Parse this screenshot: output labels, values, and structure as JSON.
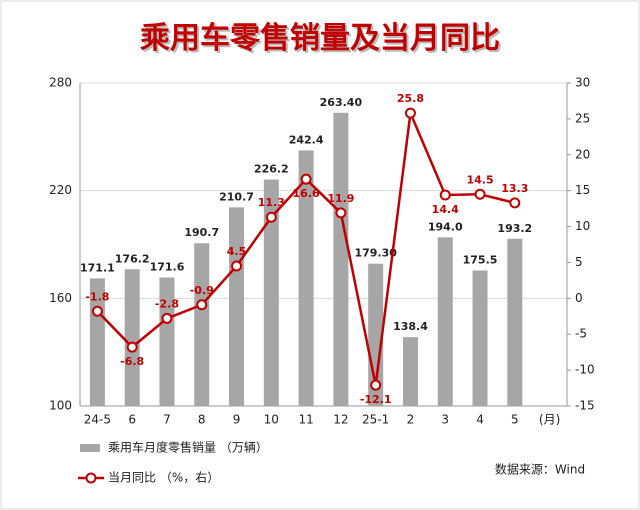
{
  "chart_data": {
    "type": "bar-line",
    "title": "乘用车零售销量及当月同比",
    "categories": [
      "24-5",
      "6",
      "7",
      "8",
      "9",
      "10",
      "11",
      "12",
      "25-1",
      "2",
      "3",
      "4",
      "5"
    ],
    "x_unit": "(月)",
    "series": [
      {
        "name": "乘用车月度零售销量 （万辆）",
        "type": "bar",
        "color": "#a6a6a6",
        "values": [
          171.1,
          176.2,
          171.6,
          190.7,
          210.7,
          226.2,
          242.4,
          263.4,
          179.3,
          138.4,
          194.0,
          175.5,
          193.2
        ],
        "value_labels": [
          "171.1",
          "176.2",
          "171.6",
          "190.7",
          "210.7",
          "226.2",
          "242.4",
          "263.40",
          "179.30",
          "138.4",
          "194.0",
          "175.5",
          "193.2"
        ]
      },
      {
        "name": "当月同比 （%，右）",
        "type": "line",
        "axis": "y2",
        "color": "#c00000",
        "values": [
          -1.8,
          -6.8,
          -2.8,
          -0.9,
          4.5,
          11.3,
          16.6,
          11.9,
          -12.1,
          25.8,
          14.4,
          14.5,
          13.3
        ]
      }
    ],
    "ylim": [
      100,
      280
    ],
    "yticks": [
      100,
      160,
      220,
      280
    ],
    "y2lim": [
      -15,
      30
    ],
    "y2ticks": [
      -15,
      -10,
      -5,
      0,
      5,
      10,
      15,
      20,
      25,
      30
    ],
    "grid": true,
    "source": "数据来源：Wind"
  }
}
